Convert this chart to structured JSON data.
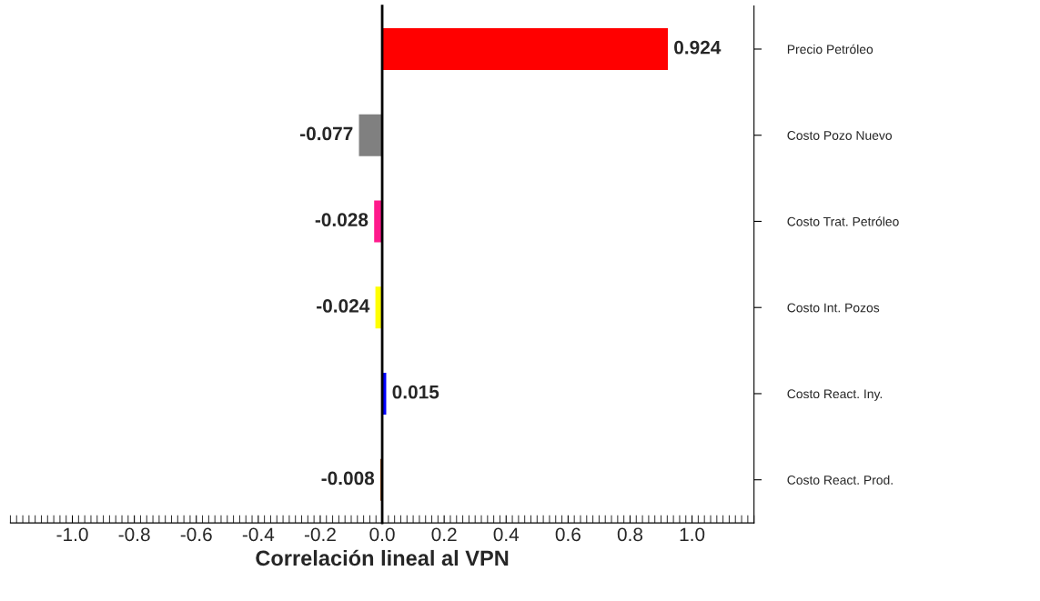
{
  "chart_data": {
    "type": "bar",
    "orientation": "horizontal",
    "xlabel": "Correlación lineal al VPN",
    "categories": [
      "Precio Petróleo",
      "Costo Pozo Nuevo",
      "Costo Trat. Petróleo",
      "Costo Int. Pozos",
      "Costo React. Iny.",
      "Costo React. Prod."
    ],
    "values": [
      0.924,
      -0.077,
      -0.028,
      -0.024,
      0.015,
      -0.008
    ],
    "colors": [
      "#ff0000",
      "#808080",
      "#ff1a8c",
      "#ffff00",
      "#0000ff",
      "#8b4513"
    ],
    "xlim": [
      -1.2,
      1.2
    ],
    "xticks": [
      {
        "value": -1.0,
        "label": "-1.0"
      },
      {
        "value": -0.8,
        "label": "-0.8"
      },
      {
        "value": -0.6,
        "label": "-0.6"
      },
      {
        "value": -0.4,
        "label": "-0.4"
      },
      {
        "value": -0.2,
        "label": "-0.2"
      },
      {
        "value": 0.0,
        "label": "0.0"
      },
      {
        "value": 0.2,
        "label": "0.2"
      },
      {
        "value": 0.4,
        "label": "0.4"
      },
      {
        "value": 0.6,
        "label": "0.6"
      },
      {
        "value": 0.8,
        "label": "0.8"
      },
      {
        "value": 1.0,
        "label": "1.0"
      }
    ],
    "data_labels": true,
    "legend": false
  }
}
